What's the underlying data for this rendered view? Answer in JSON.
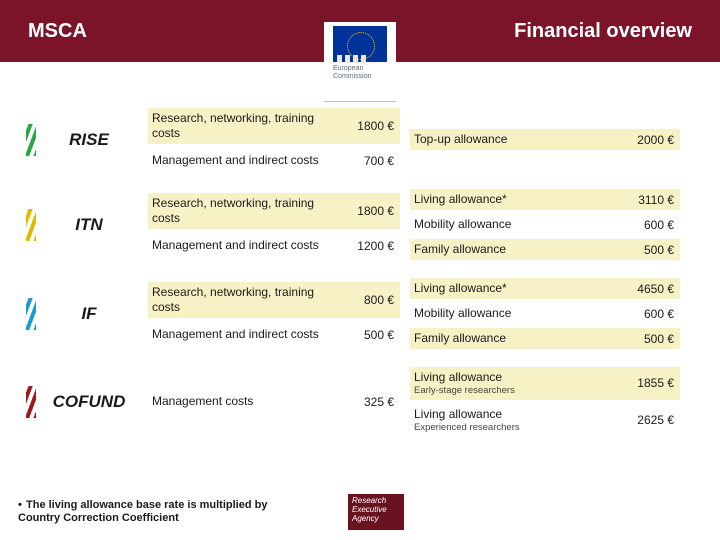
{
  "header": {
    "left": "MSCA",
    "right": "Financial overview"
  },
  "logo": {
    "line1": "European",
    "line2": "Commission"
  },
  "schemes": [
    {
      "name": "RISE",
      "color": "#2aa540",
      "mid": [
        {
          "label": "Research, networking, training costs",
          "value": "1800 €",
          "bg": true
        },
        {
          "label": "Management and indirect costs",
          "value": "700 €",
          "bg": false
        }
      ],
      "right": [
        {
          "label": "Top-up allowance",
          "value": "2000 €",
          "bg": true
        }
      ]
    },
    {
      "name": "ITN",
      "color": "#e3b900",
      "mid": [
        {
          "label": "Research, networking, training costs",
          "value": "1800 €",
          "bg": true
        },
        {
          "label": "Management and indirect costs",
          "value": "1200 €",
          "bg": false
        }
      ],
      "right": [
        {
          "label": "Living allowance*",
          "value": "3110 €",
          "bg": true
        },
        {
          "label": "Mobility allowance",
          "value": "600 €",
          "bg": false
        },
        {
          "label": "Family allowance",
          "value": "500 €",
          "bg": true
        }
      ]
    },
    {
      "name": "IF",
      "color": "#1a9ccf",
      "mid": [
        {
          "label": "Research, networking, training costs",
          "value": "800 €",
          "bg": true
        },
        {
          "label": "Management and indirect costs",
          "value": "500 €",
          "bg": false
        }
      ],
      "right": [
        {
          "label": "Living allowance*",
          "value": "4650 €",
          "bg": true
        },
        {
          "label": "Mobility allowance",
          "value": "600 €",
          "bg": false
        },
        {
          "label": "Family allowance",
          "value": "500 €",
          "bg": true
        }
      ]
    },
    {
      "name": "COFUND",
      "color": "#9c1a1a",
      "mid": [
        {
          "label": "Management costs",
          "value": "325 €",
          "bg": false
        }
      ],
      "right": [
        {
          "label": "Living allowance",
          "sub": "Early-stage researchers",
          "value": "1855 €",
          "bg": true
        },
        {
          "label": "Living allowance",
          "sub": "Experienced researchers",
          "value": "2625 €",
          "bg": false
        }
      ]
    }
  ],
  "footnote": "The living allowance base rate is multiplied by Country Correction Coefficient",
  "rea": {
    "l1": "Research",
    "l2": "Executive",
    "l3": "Agency"
  }
}
